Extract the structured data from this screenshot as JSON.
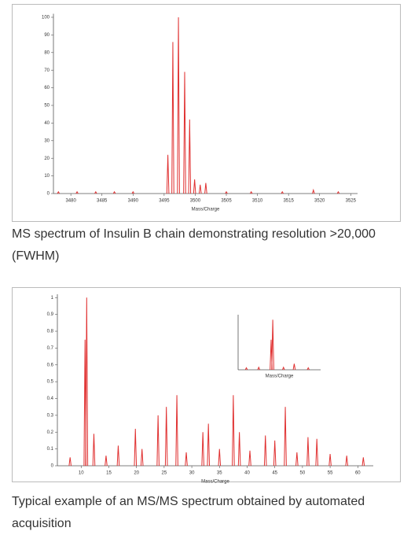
{
  "chart_data": [
    {
      "type": "spectrum",
      "color": "#e03030",
      "xlabel": "Mass/Charge",
      "x": [
        3478,
        3481,
        3484,
        3487,
        3490,
        3495.6,
        3496.4,
        3497.3,
        3498.3,
        3499.1,
        3499.9,
        3500.8,
        3501.7,
        3505,
        3509,
        3514,
        3519,
        3523
      ],
      "values": [
        1,
        1,
        1,
        1,
        1,
        22,
        86,
        100,
        69,
        42,
        8,
        5,
        6,
        1,
        1,
        1,
        2,
        1
      ],
      "xlim": [
        3477.2,
        3526.1
      ],
      "ylim": [
        0,
        102
      ],
      "xticks": [
        3480,
        3485,
        3490,
        3495,
        3500,
        3505,
        3510,
        3515,
        3520,
        3525
      ],
      "yticks": [
        0,
        10,
        20,
        30,
        40,
        50,
        60,
        70,
        80,
        90,
        100
      ]
    },
    {
      "type": "spectrum",
      "color": "#e03030",
      "xlabel": "Mass/Charge",
      "x": [
        8,
        10.7,
        11.0,
        12.3,
        14.5,
        16.7,
        19.8,
        21,
        23.9,
        25.4,
        27.3,
        29,
        32.0,
        33.0,
        35,
        37.5,
        38.6,
        40.5,
        43.3,
        45.0,
        46.9,
        49,
        51.0,
        52.6,
        55,
        58,
        61
      ],
      "values": [
        0.05,
        0.75,
        1.0,
        0.19,
        0.06,
        0.12,
        0.22,
        0.1,
        0.3,
        0.35,
        0.42,
        0.08,
        0.2,
        0.25,
        0.1,
        0.42,
        0.2,
        0.09,
        0.18,
        0.15,
        0.35,
        0.08,
        0.17,
        0.16,
        0.07,
        0.06,
        0.05
      ],
      "xlim": [
        5.7,
        62.8
      ],
      "ylim": [
        0,
        1.02
      ],
      "xticks": [
        10,
        15,
        20,
        25,
        30,
        35,
        40,
        45,
        50,
        55,
        60
      ],
      "yticks": [
        0,
        0.1,
        0.2,
        0.3,
        0.4,
        0.5,
        0.6,
        0.7,
        0.8,
        0.9,
        1
      ]
    },
    {
      "type": "spectrum",
      "color": "#e03030",
      "xlabel": "Mass/Charge",
      "x": [
        10,
        25,
        40,
        42,
        55,
        68,
        85
      ],
      "values": [
        0.04,
        0.05,
        0.6,
        1.0,
        0.05,
        0.12,
        0.04
      ],
      "xlim": [
        0,
        100
      ],
      "ylim": [
        0,
        1.1
      ]
    }
  ],
  "captions": [
    "MS spectrum of Insulin B chain demonstrating resolution >20,000 (FWHM)",
    "Typical example of an MS/MS spectrum obtained by automated acquisition"
  ]
}
